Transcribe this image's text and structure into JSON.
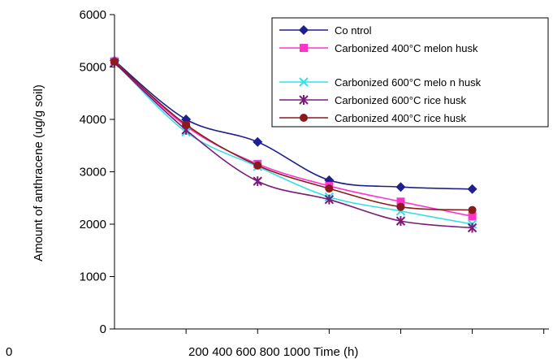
{
  "chart_data": {
    "type": "line",
    "title": "",
    "ylabel": "Amount of anthracene (ug/g soil)",
    "x_axis_text": "200 400 600 800 1000 Time (h)",
    "x_origin_label": "0",
    "x": [
      0,
      168,
      336,
      504,
      672,
      840
    ],
    "ylim": [
      0,
      6000
    ],
    "yticks": [
      0,
      1000,
      2000,
      3000,
      4000,
      5000,
      6000
    ],
    "ytick_labels": [
      "0",
      "1000",
      "2000",
      "3000",
      "4000",
      "5000",
      "6000"
    ],
    "grid": false,
    "legend_position": "top-right",
    "series": [
      {
        "name": "Co ntrol",
        "color": "#1f1f8f",
        "marker": "diamond",
        "values": [
          5120,
          4000,
          3570,
          2840,
          2710,
          2670
        ]
      },
      {
        "name": "Carbonized 400°C melon husk",
        "color": "#ff33cc",
        "marker": "square",
        "values": [
          5110,
          3870,
          3150,
          2730,
          2430,
          2150
        ]
      },
      {
        "name": "Carbonized 600°C melo n husk",
        "color": "#33e0e8",
        "marker": "x",
        "values": [
          5100,
          3760,
          3100,
          2520,
          2250,
          2000
        ]
      },
      {
        "name": "Carbonized 600°C rice husk",
        "color": "#7a1a7a",
        "marker": "star",
        "values": [
          5080,
          3800,
          2820,
          2470,
          2060,
          1930
        ]
      },
      {
        "name": "Carbonized 400°C rice husk",
        "color": "#8b1a1a",
        "marker": "circle",
        "values": [
          5100,
          3900,
          3120,
          2680,
          2330,
          2270
        ]
      }
    ]
  }
}
